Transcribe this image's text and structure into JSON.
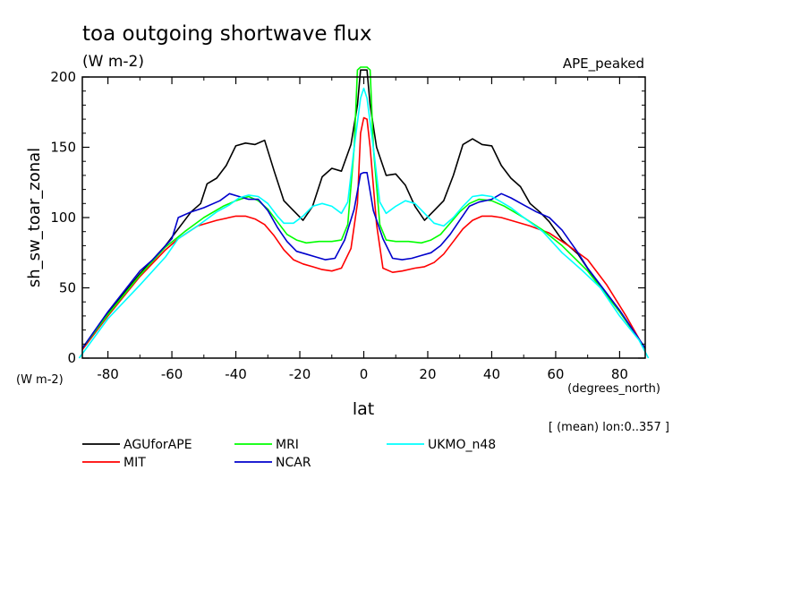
{
  "chart_data": {
    "type": "line",
    "title": "toa outgoing shortwave flux",
    "units": "(W m-2)",
    "experiment": "APE_peaked",
    "ylabel": "sh_sw_toar_zonal",
    "y_units": "(W m-2)",
    "xlabel": "lat",
    "x_units": "(degrees_north)",
    "note": "[ (mean) lon:0..357 ]",
    "xlim": [
      -88,
      88
    ],
    "ylim": [
      0,
      200
    ],
    "x_ticks": [
      -80,
      -60,
      -40,
      -20,
      0,
      20,
      40,
      60,
      80
    ],
    "x_tick_labels": [
      "-80",
      "-60",
      "-40",
      "-20",
      "0",
      "20",
      "40",
      "60",
      "80"
    ],
    "y_ticks": [
      0,
      50,
      100,
      150,
      200
    ],
    "y_tick_labels": [
      "0",
      "50",
      "100",
      "150",
      "200"
    ],
    "series": [
      {
        "name": "AGUforAPE",
        "color": "#000000",
        "points": [
          [
            -88,
            7
          ],
          [
            -80,
            32
          ],
          [
            -70,
            60
          ],
          [
            -62,
            80
          ],
          [
            -57,
            95
          ],
          [
            -54,
            104
          ],
          [
            -51,
            110
          ],
          [
            -49,
            124
          ],
          [
            -46,
            128
          ],
          [
            -43,
            137
          ],
          [
            -40,
            151
          ],
          [
            -37,
            153
          ],
          [
            -34,
            152
          ],
          [
            -31,
            155
          ],
          [
            -28,
            133
          ],
          [
            -25,
            112
          ],
          [
            -22,
            105
          ],
          [
            -19,
            98
          ],
          [
            -16,
            108
          ],
          [
            -13,
            129
          ],
          [
            -10,
            135
          ],
          [
            -7,
            133
          ],
          [
            -4,
            152
          ],
          [
            -2,
            180
          ],
          [
            -1,
            205
          ],
          [
            0,
            205
          ],
          [
            1,
            205
          ],
          [
            2,
            180
          ],
          [
            4,
            150
          ],
          [
            7,
            130
          ],
          [
            10,
            131
          ],
          [
            13,
            123
          ],
          [
            16,
            108
          ],
          [
            19,
            98
          ],
          [
            22,
            105
          ],
          [
            25,
            112
          ],
          [
            28,
            130
          ],
          [
            31,
            152
          ],
          [
            34,
            156
          ],
          [
            37,
            152
          ],
          [
            40,
            151
          ],
          [
            43,
            137
          ],
          [
            46,
            128
          ],
          [
            49,
            122
          ],
          [
            52,
            110
          ],
          [
            55,
            104
          ],
          [
            58,
            97
          ],
          [
            62,
            84
          ],
          [
            67,
            74
          ],
          [
            72,
            57
          ],
          [
            80,
            33
          ],
          [
            88,
            7
          ]
        ]
      },
      {
        "name": "MIT",
        "color": "#ff0000",
        "points": [
          [
            -88,
            6
          ],
          [
            -80,
            30
          ],
          [
            -70,
            58
          ],
          [
            -62,
            77
          ],
          [
            -58,
            85
          ],
          [
            -52,
            94
          ],
          [
            -46,
            98
          ],
          [
            -40,
            101
          ],
          [
            -37,
            101
          ],
          [
            -34,
            99
          ],
          [
            -31,
            95
          ],
          [
            -28,
            87
          ],
          [
            -25,
            77
          ],
          [
            -22,
            70
          ],
          [
            -19,
            67
          ],
          [
            -16,
            65
          ],
          [
            -13,
            63
          ],
          [
            -10,
            62
          ],
          [
            -7,
            64
          ],
          [
            -4,
            78
          ],
          [
            -2,
            110
          ],
          [
            -1,
            160
          ],
          [
            0,
            171
          ],
          [
            1,
            170
          ],
          [
            2,
            150
          ],
          [
            4,
            95
          ],
          [
            6,
            64
          ],
          [
            9,
            61
          ],
          [
            12,
            62
          ],
          [
            16,
            64
          ],
          [
            19,
            65
          ],
          [
            22,
            68
          ],
          [
            25,
            74
          ],
          [
            28,
            83
          ],
          [
            31,
            92
          ],
          [
            34,
            98
          ],
          [
            37,
            101
          ],
          [
            40,
            101
          ],
          [
            43,
            100
          ],
          [
            46,
            98
          ],
          [
            52,
            94
          ],
          [
            58,
            89
          ],
          [
            64,
            80
          ],
          [
            70,
            70
          ],
          [
            76,
            52
          ],
          [
            82,
            30
          ],
          [
            88,
            6
          ]
        ]
      },
      {
        "name": "MRI",
        "color": "#00ff00",
        "points": [
          [
            -88,
            7
          ],
          [
            -80,
            31
          ],
          [
            -70,
            59
          ],
          [
            -62,
            79
          ],
          [
            -56,
            90
          ],
          [
            -50,
            100
          ],
          [
            -44,
            108
          ],
          [
            -40,
            112
          ],
          [
            -36,
            115
          ],
          [
            -33,
            112
          ],
          [
            -30,
            106
          ],
          [
            -27,
            97
          ],
          [
            -24,
            88
          ],
          [
            -21,
            84
          ],
          [
            -18,
            82
          ],
          [
            -14,
            83
          ],
          [
            -10,
            83
          ],
          [
            -7,
            84
          ],
          [
            -5,
            95
          ],
          [
            -3,
            150
          ],
          [
            -2,
            205
          ],
          [
            -1,
            207
          ],
          [
            0,
            207
          ],
          [
            1,
            207
          ],
          [
            2,
            205
          ],
          [
            3,
            150
          ],
          [
            5,
            95
          ],
          [
            7,
            84
          ],
          [
            10,
            83
          ],
          [
            14,
            83
          ],
          [
            18,
            82
          ],
          [
            21,
            84
          ],
          [
            24,
            88
          ],
          [
            27,
            96
          ],
          [
            30,
            104
          ],
          [
            33,
            110
          ],
          [
            36,
            113
          ],
          [
            40,
            112
          ],
          [
            44,
            108
          ],
          [
            50,
            100
          ],
          [
            56,
            91
          ],
          [
            62,
            80
          ],
          [
            70,
            62
          ],
          [
            80,
            33
          ],
          [
            88,
            7
          ]
        ]
      },
      {
        "name": "NCAR",
        "color": "#0000cc",
        "points": [
          [
            -88,
            7
          ],
          [
            -80,
            33
          ],
          [
            -70,
            62
          ],
          [
            -66,
            70
          ],
          [
            -60,
            85
          ],
          [
            -58,
            100
          ],
          [
            -54,
            104
          ],
          [
            -50,
            107
          ],
          [
            -45,
            112
          ],
          [
            -42,
            117
          ],
          [
            -39,
            115
          ],
          [
            -36,
            113
          ],
          [
            -33,
            113
          ],
          [
            -30,
            105
          ],
          [
            -27,
            93
          ],
          [
            -24,
            83
          ],
          [
            -21,
            76
          ],
          [
            -18,
            74
          ],
          [
            -15,
            72
          ],
          [
            -12,
            70
          ],
          [
            -9,
            71
          ],
          [
            -6,
            84
          ],
          [
            -3,
            106
          ],
          [
            -1,
            131
          ],
          [
            0,
            132
          ],
          [
            1,
            132
          ],
          [
            3,
            105
          ],
          [
            6,
            85
          ],
          [
            9,
            71
          ],
          [
            12,
            70
          ],
          [
            15,
            71
          ],
          [
            18,
            73
          ],
          [
            21,
            75
          ],
          [
            24,
            80
          ],
          [
            27,
            88
          ],
          [
            30,
            98
          ],
          [
            33,
            108
          ],
          [
            36,
            111
          ],
          [
            40,
            113
          ],
          [
            43,
            117
          ],
          [
            46,
            114
          ],
          [
            50,
            109
          ],
          [
            54,
            104
          ],
          [
            58,
            100
          ],
          [
            62,
            91
          ],
          [
            67,
            75
          ],
          [
            70,
            64
          ],
          [
            80,
            34
          ],
          [
            88,
            7
          ]
        ]
      },
      {
        "name": "UKMO_n48",
        "color": "#00ffff",
        "points": [
          [
            -89,
            0
          ],
          [
            -80,
            28
          ],
          [
            -70,
            52
          ],
          [
            -62,
            72
          ],
          [
            -58,
            85
          ],
          [
            -52,
            94
          ],
          [
            -46,
            104
          ],
          [
            -42,
            109
          ],
          [
            -39,
            114
          ],
          [
            -36,
            116
          ],
          [
            -33,
            115
          ],
          [
            -30,
            110
          ],
          [
            -27,
            101
          ],
          [
            -25,
            96
          ],
          [
            -22,
            96
          ],
          [
            -19,
            101
          ],
          [
            -16,
            108
          ],
          [
            -13,
            110
          ],
          [
            -10,
            108
          ],
          [
            -7,
            103
          ],
          [
            -5,
            111
          ],
          [
            -3,
            150
          ],
          [
            -1,
            185
          ],
          [
            0,
            192
          ],
          [
            1,
            185
          ],
          [
            3,
            150
          ],
          [
            5,
            111
          ],
          [
            7,
            103
          ],
          [
            10,
            108
          ],
          [
            13,
            112
          ],
          [
            16,
            110
          ],
          [
            19,
            103
          ],
          [
            22,
            96
          ],
          [
            25,
            94
          ],
          [
            28,
            100
          ],
          [
            31,
            108
          ],
          [
            34,
            115
          ],
          [
            37,
            116
          ],
          [
            40,
            115
          ],
          [
            43,
            111
          ],
          [
            46,
            107
          ],
          [
            50,
            100
          ],
          [
            56,
            90
          ],
          [
            62,
            75
          ],
          [
            68,
            63
          ],
          [
            74,
            50
          ],
          [
            80,
            30
          ],
          [
            86,
            13
          ],
          [
            89,
            0
          ]
        ]
      }
    ]
  }
}
